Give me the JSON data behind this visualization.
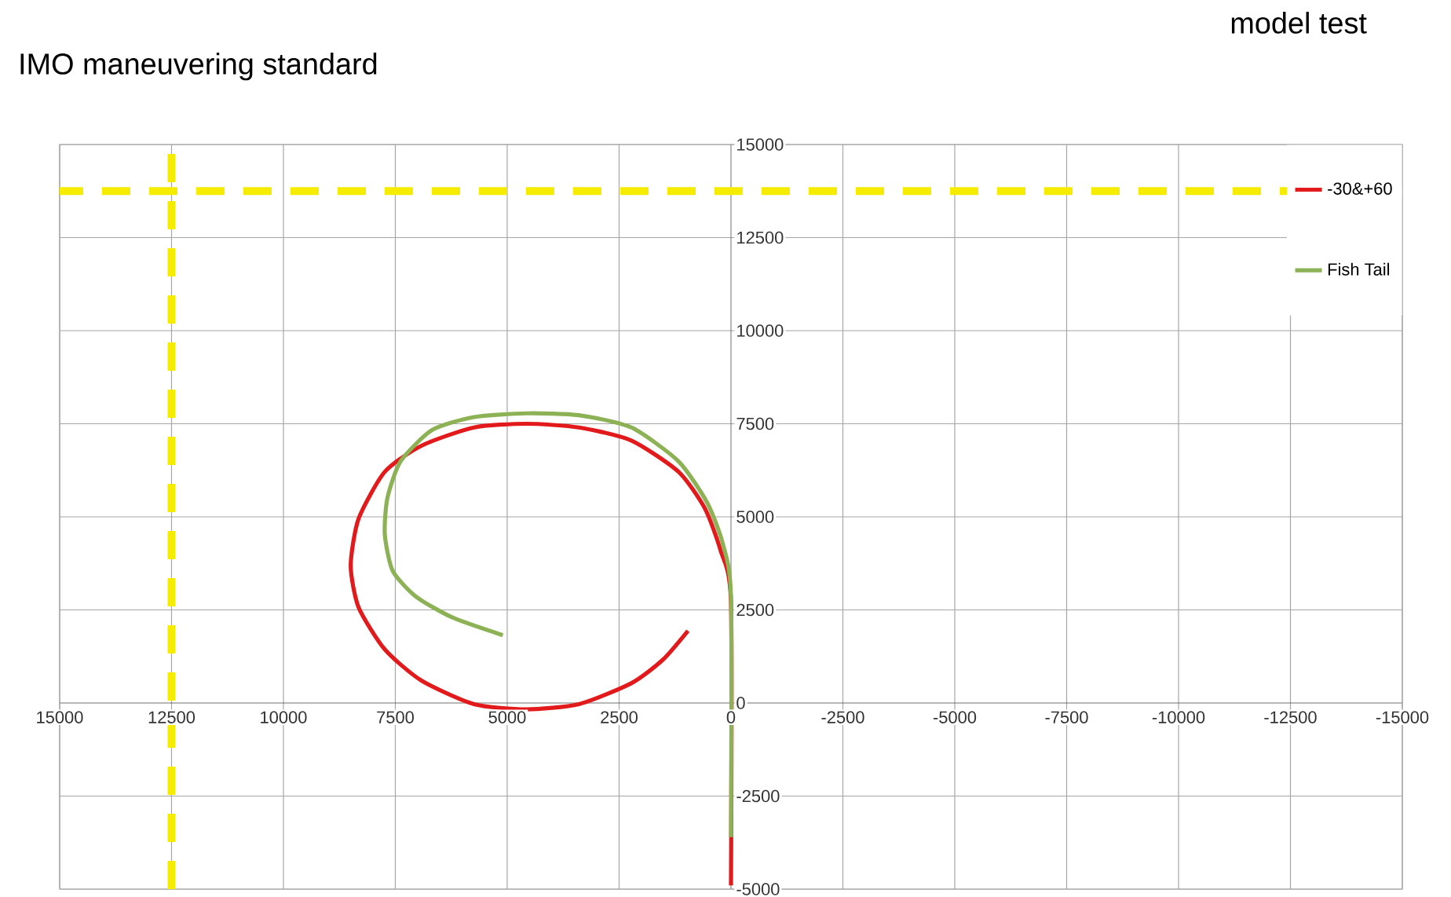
{
  "chart_data": {
    "type": "line",
    "title": "model test",
    "annotations": [
      "IMO maneuvering standard"
    ],
    "xlim": [
      15000,
      -15000
    ],
    "ylim": [
      -5000,
      15000
    ],
    "xticks": [
      15000,
      12500,
      10000,
      7500,
      5000,
      2500,
      0,
      -2500,
      -5000,
      -7500,
      -10000,
      -12500,
      -15000
    ],
    "yticks": [
      -5000,
      -2500,
      0,
      2500,
      5000,
      7500,
      10000,
      12500,
      15000
    ],
    "grid": true,
    "legend": "top right",
    "ref_lines": [
      {
        "axis": "x",
        "value": 12500,
        "color": "#f5ec00",
        "line_style": "dashed"
      },
      {
        "axis": "y",
        "value": 13750,
        "color": "#f5ec00",
        "line_style": "dashed"
      }
    ],
    "series": [
      {
        "name": "-30&+60",
        "color": "#e31a1c",
        "x": [
          0,
          0,
          234,
          586,
          1172,
          2227,
          3399,
          4571,
          5743,
          6915,
          7735,
          8321,
          8497,
          8321,
          7735,
          6915,
          5743,
          4571,
          3399,
          2227,
          1524,
          961
        ],
        "values": [
          -4900,
          2700,
          4100,
          5230,
          6210,
          7050,
          7400,
          7500,
          7400,
          6910,
          6210,
          4950,
          3690,
          2570,
          1440,
          600,
          -30,
          -170,
          -30,
          530,
          1160,
          1940
        ]
      },
      {
        "name": "Fish Tail",
        "color": "#8db256",
        "x": [
          0,
          0,
          176,
          527,
          1172,
          2227,
          3399,
          4571,
          5743,
          6680,
          7383,
          7676,
          7735,
          7559,
          7031,
          6211,
          5098
        ],
        "values": [
          -3600,
          2850,
          4250,
          5370,
          6490,
          7400,
          7730,
          7780,
          7680,
          7330,
          6490,
          5510,
          4530,
          3550,
          2850,
          2290,
          1820
        ]
      }
    ]
  }
}
